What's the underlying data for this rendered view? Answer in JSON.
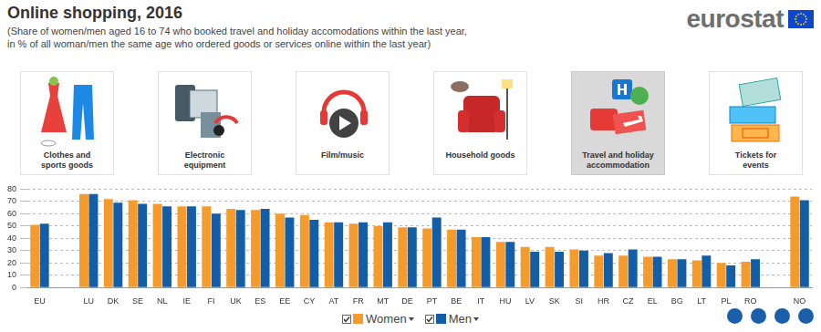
{
  "header": {
    "title": "Online shopping, 2016",
    "subtitle": [
      "(Share of women/men aged 16 to 74 who booked travel and holiday accomodations within the last year,",
      "in % of all woman/men the same age who ordered goods or services online within the last year)"
    ],
    "logo": "eurostat"
  },
  "tabs": [
    {
      "label": [
        "Clothes and",
        "sports goods"
      ],
      "active": false
    },
    {
      "label": [
        "Electronic",
        "equipment"
      ],
      "active": false
    },
    {
      "label": [
        "Film/music"
      ],
      "active": false
    },
    {
      "label": [
        "Household goods"
      ],
      "active": false
    },
    {
      "label": [
        "Travel and holiday",
        "accommodation"
      ],
      "active": true
    },
    {
      "label": [
        "Tickets for",
        "events"
      ],
      "active": false
    }
  ],
  "chart_data": {
    "type": "bar",
    "categories": [
      "EU",
      null,
      "LU",
      "DK",
      "SE",
      "NL",
      "IE",
      "FI",
      "UK",
      "ES",
      "EE",
      "CY",
      "AT",
      "FR",
      "MT",
      "DE",
      "PT",
      "BE",
      "IT",
      "HU",
      "LV",
      "SK",
      "SI",
      "HR",
      "CZ",
      "EL",
      "BG",
      "LT",
      "PL",
      "RO",
      null,
      "NO"
    ],
    "series": [
      {
        "name": "Women",
        "color": "#f59b2c",
        "values": [
          51,
          null,
          76,
          72,
          71,
          68,
          66,
          66,
          64,
          63,
          60,
          59,
          53,
          52,
          50,
          49,
          48,
          47,
          41,
          37,
          33,
          33,
          31,
          26,
          26,
          25,
          23,
          22,
          20,
          21,
          null,
          74
        ]
      },
      {
        "name": "Men",
        "color": "#135ea6",
        "values": [
          52,
          null,
          76,
          69,
          68,
          66,
          66,
          60,
          63,
          64,
          57,
          55,
          53,
          53,
          53,
          49,
          57,
          47,
          41,
          37,
          29,
          29,
          30,
          28,
          31,
          25,
          23,
          26,
          18,
          23,
          null,
          71
        ]
      }
    ],
    "ylim": [
      0,
      80
    ],
    "yticks": [
      0,
      10,
      20,
      30,
      40,
      50,
      60,
      70,
      80
    ],
    "grid": true,
    "legend": "bottom"
  }
}
